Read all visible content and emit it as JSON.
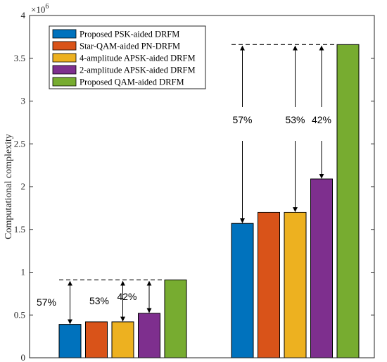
{
  "chart_data": {
    "type": "bar",
    "title": "",
    "xlabel": "",
    "ylabel": "Computational complexity",
    "y_multiplier": "×10",
    "y_multiplier_exp": "6",
    "ylim": [
      0,
      4
    ],
    "yticks": [
      "0",
      "0.5",
      "1",
      "1.5",
      "2",
      "2.5",
      "3",
      "3.5",
      "4"
    ],
    "grid": false,
    "legend_position": "top-left",
    "groups": 2,
    "series": [
      {
        "name": "Proposed PSK-aided DRFM",
        "color": "#0072BD",
        "values": [
          0.39,
          1.57
        ]
      },
      {
        "name": "Star-QAM-aided PN-DRFM",
        "color": "#D95319",
        "values": [
          0.42,
          1.7
        ]
      },
      {
        "name": "4-amplitude APSK-aided DRFM",
        "color": "#EDB120",
        "values": [
          0.42,
          1.7
        ]
      },
      {
        "name": "2-amplitude APSK-aided DRFM",
        "color": "#7E2F8E",
        "values": [
          0.52,
          2.09
        ]
      },
      {
        "name": "Proposed QAM-aided DRFM",
        "color": "#77AC30",
        "values": [
          0.91,
          3.66
        ]
      }
    ],
    "annotations": [
      {
        "group": 0,
        "series": 0,
        "label": "57%"
      },
      {
        "group": 0,
        "series": 2,
        "label": "53%"
      },
      {
        "group": 0,
        "series": 3,
        "label": "42%"
      },
      {
        "group": 1,
        "series": 0,
        "label": "57%"
      },
      {
        "group": 1,
        "series": 2,
        "label": "53%"
      },
      {
        "group": 1,
        "series": 3,
        "label": "42%"
      }
    ]
  }
}
